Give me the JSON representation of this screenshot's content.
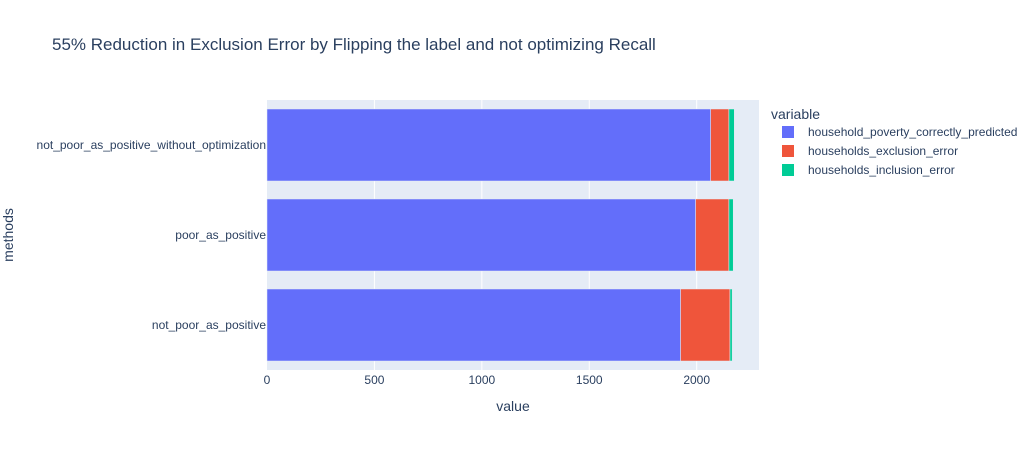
{
  "chart_data": {
    "type": "bar",
    "orientation": "horizontal",
    "barmode": "stack",
    "title": "55% Reduction in Exclusion Error by Flipping the label and not optimizing Recall",
    "xlabel": "value",
    "ylabel": "methods",
    "xlim": [
      0,
      2290
    ],
    "x_ticks": [
      0,
      500,
      1000,
      1500,
      2000
    ],
    "grid": true,
    "legend_title": "variable",
    "legend_position": "right",
    "categories": [
      "not_poor_as_positive_without_optimization",
      "poor_as_positive",
      "not_poor_as_positive"
    ],
    "series": [
      {
        "name": "household_poverty_correctly_predicted",
        "color": "#636efa",
        "values": [
          2065,
          1995,
          1925
        ]
      },
      {
        "name": "households_exclusion_error",
        "color": "#ef553b",
        "values": [
          85,
          155,
          230
        ]
      },
      {
        "name": "households_inclusion_error",
        "color": "#00cc96",
        "values": [
          25,
          20,
          10
        ]
      }
    ]
  },
  "colors": {
    "plot_bg": "#e5ecf6",
    "grid": "#ffffff",
    "text": "#2a3f5f"
  }
}
